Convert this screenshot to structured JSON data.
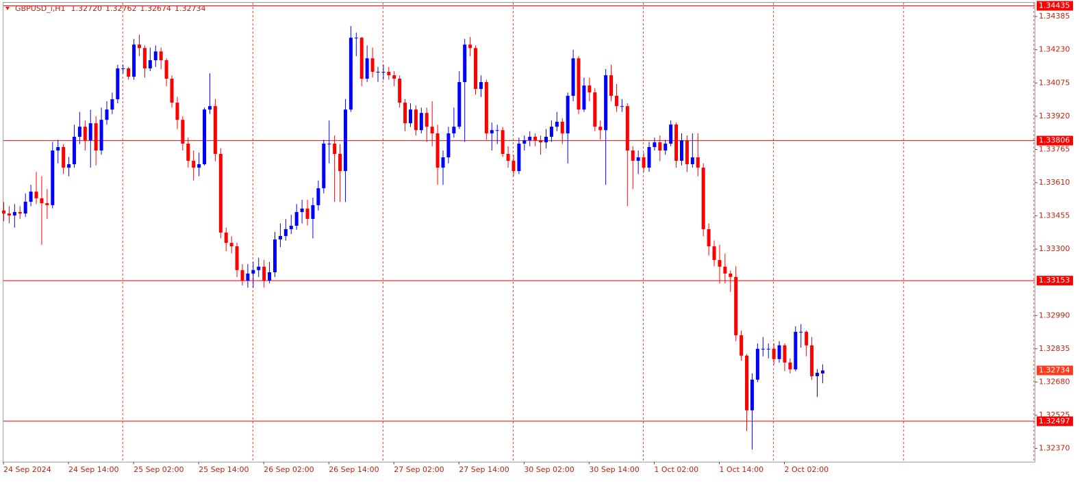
{
  "chart_data": {
    "type": "candlestick",
    "title": "GBPUSD_i,H1",
    "header_values": [
      "1.32720",
      "1.32762",
      "1.32674",
      "1.32734"
    ],
    "up_color": "#0000ff",
    "down_color": "#ff0000",
    "level_color": "#ff0000",
    "last_price_color": "#ff3b1f",
    "ylim": [
      1.32308,
      1.34462
    ],
    "yticks": [
      1.34385,
      {
        "value": 1.3423,
        "label": "1.34230"
      },
      1.34075,
      {
        "value": 1.3392,
        "label": "1.33920"
      },
      1.33765,
      {
        "value": 1.3361,
        "label": "1.33610"
      },
      1.33455,
      {
        "value": 1.333,
        "label": "1.33300"
      },
      {
        "value": 1.3299,
        "label": "1.32990"
      },
      1.32835,
      {
        "value": 1.3268,
        "label": "1.32680"
      },
      1.32525,
      {
        "value": 1.3237,
        "label": "1.32370"
      }
    ],
    "levels": [
      1.34435,
      1.33806,
      1.33153,
      1.32497
    ],
    "last_price": 1.32734,
    "categories": [
      "24 Sep 2024",
      null,
      null,
      null,
      null,
      null,
      null,
      null,
      null,
      null,
      null,
      null,
      "24 Sep 14:00",
      null,
      null,
      null,
      null,
      null,
      null,
      null,
      null,
      null,
      null,
      null,
      "25 Sep 02:00",
      null,
      null,
      null,
      null,
      null,
      null,
      null,
      null,
      null,
      null,
      null,
      "25 Sep 14:00",
      null,
      null,
      null,
      null,
      null,
      null,
      null,
      null,
      null,
      null,
      null,
      "26 Sep 02:00",
      null,
      null,
      null,
      null,
      null,
      null,
      null,
      null,
      null,
      null,
      null,
      "26 Sep 14:00",
      null,
      null,
      null,
      null,
      null,
      null,
      null,
      null,
      null,
      null,
      null,
      "27 Sep 02:00",
      null,
      null,
      null,
      null,
      null,
      null,
      null,
      null,
      null,
      null,
      null,
      "27 Sep 14:00",
      null,
      null,
      null,
      null,
      null,
      null,
      null,
      null,
      null,
      null,
      null,
      "30 Sep 02:00",
      null,
      null,
      null,
      null,
      null,
      null,
      null,
      null,
      null,
      null,
      null,
      "30 Sep 14:00",
      null,
      null,
      null,
      null,
      null,
      null,
      null,
      null,
      null,
      null,
      null,
      "1 Oct 02:00",
      null,
      null,
      null,
      null,
      null,
      null,
      null,
      null,
      null,
      null,
      null,
      "1 Oct 14:00",
      null,
      null,
      null,
      null,
      null,
      null,
      null,
      null,
      null,
      null,
      null,
      "2 Oct 02:00",
      null,
      null,
      null,
      null,
      null,
      null,
      null
    ],
    "candles": [
      [
        1.3348,
        1.3352,
        1.3343,
        1.33466
      ],
      [
        1.33466,
        1.335,
        1.3342,
        1.33457
      ],
      [
        1.33457,
        1.3351,
        1.334,
        1.33473
      ],
      [
        1.33473,
        1.335,
        1.3344,
        1.33466
      ],
      [
        1.33466,
        1.3356,
        1.3345,
        1.33521
      ],
      [
        1.33521,
        1.336,
        1.335,
        1.33568
      ],
      [
        1.33568,
        1.3366,
        1.3351,
        1.33537
      ],
      [
        1.33537,
        1.3364,
        1.3332,
        1.33514
      ],
      [
        1.33514,
        1.3358,
        1.3344,
        1.33505
      ],
      [
        1.33505,
        1.338,
        1.3349,
        1.3376
      ],
      [
        1.3376,
        1.3381,
        1.337,
        1.33776
      ],
      [
        1.33776,
        1.3379,
        1.3365,
        1.3368
      ],
      [
        1.3368,
        1.3373,
        1.3364,
        1.33696
      ],
      [
        1.33696,
        1.3388,
        1.3368,
        1.33824
      ],
      [
        1.33824,
        1.3394,
        1.3379,
        1.33871
      ],
      [
        1.33871,
        1.339,
        1.3376,
        1.33808
      ],
      [
        1.33808,
        1.3395,
        1.3368,
        1.33887
      ],
      [
        1.33887,
        1.3392,
        1.3369,
        1.3376
      ],
      [
        1.3376,
        1.3396,
        1.3374,
        1.33903
      ],
      [
        1.33903,
        1.3399,
        1.3388,
        1.33951
      ],
      [
        1.33951,
        1.3403,
        1.3393,
        1.33999
      ],
      [
        1.33999,
        1.3416,
        1.3398,
        1.34143
      ],
      [
        1.34143,
        1.3416,
        1.3412,
        1.34143
      ],
      [
        1.34143,
        1.3415,
        1.3409,
        1.34104
      ],
      [
        1.34104,
        1.3428,
        1.3409,
        1.34254
      ],
      [
        1.34254,
        1.343,
        1.342,
        1.34238
      ],
      [
        1.34238,
        1.3425,
        1.341,
        1.34143
      ],
      [
        1.34143,
        1.3424,
        1.3413,
        1.34181
      ],
      [
        1.34181,
        1.3425,
        1.3415,
        1.34222
      ],
      [
        1.34222,
        1.3424,
        1.3414,
        1.34181
      ],
      [
        1.34181,
        1.3419,
        1.3406,
        1.34095
      ],
      [
        1.34095,
        1.3411,
        1.3396,
        1.33983
      ],
      [
        1.33983,
        1.3401,
        1.3386,
        1.33903
      ],
      [
        1.33903,
        1.3392,
        1.3376,
        1.33792
      ],
      [
        1.33792,
        1.3382,
        1.3368,
        1.33712
      ],
      [
        1.33712,
        1.3376,
        1.3362,
        1.3368
      ],
      [
        1.3368,
        1.3375,
        1.3364,
        1.33696
      ],
      [
        1.33696,
        1.3396,
        1.3369,
        1.33951
      ],
      [
        1.33951,
        1.3412,
        1.3393,
        1.33967
      ],
      [
        1.33967,
        1.34,
        1.3371,
        1.33744
      ],
      [
        1.33744,
        1.3377,
        1.3335,
        1.33377
      ],
      [
        1.33377,
        1.334,
        1.3329,
        1.33329
      ],
      [
        1.33329,
        1.3336,
        1.3328,
        1.33313
      ],
      [
        1.33313,
        1.3333,
        1.3317,
        1.33202
      ],
      [
        1.33202,
        1.3323,
        1.3313,
        1.33154
      ],
      [
        1.33154,
        1.3323,
        1.3312,
        1.33186
      ],
      [
        1.33186,
        1.3324,
        1.3312,
        1.33202
      ],
      [
        1.33202,
        1.3326,
        1.3317,
        1.33218
      ],
      [
        1.33218,
        1.3325,
        1.3312,
        1.33154
      ],
      [
        1.33154,
        1.3324,
        1.3314,
        1.33192
      ],
      [
        1.33192,
        1.3338,
        1.3317,
        1.33345
      ],
      [
        1.33345,
        1.3342,
        1.3331,
        1.33361
      ],
      [
        1.33361,
        1.3344,
        1.3334,
        1.33393
      ],
      [
        1.33393,
        1.3346,
        1.3337,
        1.33409
      ],
      [
        1.33409,
        1.3351,
        1.3339,
        1.33473
      ],
      [
        1.33473,
        1.3353,
        1.3342,
        1.33489
      ],
      [
        1.33489,
        1.3353,
        1.3341,
        1.33441
      ],
      [
        1.33441,
        1.3354,
        1.3335,
        1.33505
      ],
      [
        1.33505,
        1.3362,
        1.3348,
        1.33584
      ],
      [
        1.33584,
        1.3381,
        1.3356,
        1.33792
      ],
      [
        1.33792,
        1.339,
        1.337,
        1.33792
      ],
      [
        1.33792,
        1.3383,
        1.3352,
        1.33744
      ],
      [
        1.33744,
        1.3379,
        1.3352,
        1.33664
      ],
      [
        1.33664,
        1.34,
        1.3352,
        1.33951
      ],
      [
        1.33951,
        1.3434,
        1.3394,
        1.34286
      ],
      [
        1.34286,
        1.3431,
        1.342,
        1.34286
      ],
      [
        1.34286,
        1.3429,
        1.3406,
        1.34095
      ],
      [
        1.34095,
        1.3425,
        1.3408,
        1.3419
      ],
      [
        1.3419,
        1.3424,
        1.341,
        1.34127
      ],
      [
        1.34127,
        1.3415,
        1.3408,
        1.34127
      ],
      [
        1.34127,
        1.3416,
        1.3409,
        1.34127
      ],
      [
        1.34127,
        1.3415,
        1.3409,
        1.34111
      ],
      [
        1.34111,
        1.3413,
        1.3406,
        1.34095
      ],
      [
        1.34095,
        1.3411,
        1.3396,
        1.33983
      ],
      [
        1.33983,
        1.34,
        1.3385,
        1.33887
      ],
      [
        1.33887,
        1.3398,
        1.3387,
        1.33951
      ],
      [
        1.33951,
        1.3397,
        1.3383,
        1.33855
      ],
      [
        1.33855,
        1.3396,
        1.3384,
        1.33935
      ],
      [
        1.33935,
        1.3396,
        1.338,
        1.33871
      ],
      [
        1.33871,
        1.3399,
        1.3378,
        1.3384
      ],
      [
        1.3384,
        1.3388,
        1.336,
        1.3368
      ],
      [
        1.3368,
        1.3376,
        1.336,
        1.33728
      ],
      [
        1.33728,
        1.3387,
        1.337,
        1.3384
      ],
      [
        1.3384,
        1.3396,
        1.3382,
        1.33871
      ],
      [
        1.33871,
        1.3413,
        1.3386,
        1.34079
      ],
      [
        1.34079,
        1.3428,
        1.338,
        1.34254
      ],
      [
        1.34254,
        1.3429,
        1.342,
        1.34238
      ],
      [
        1.34238,
        1.3425,
        1.3402,
        1.34047
      ],
      [
        1.34047,
        1.3411,
        1.3401,
        1.34079
      ],
      [
        1.34079,
        1.3409,
        1.3381,
        1.3384
      ],
      [
        1.3384,
        1.3389,
        1.3376,
        1.33855
      ],
      [
        1.33855,
        1.3388,
        1.3379,
        1.33855
      ],
      [
        1.33855,
        1.3387,
        1.3373,
        1.33744
      ],
      [
        1.33744,
        1.3378,
        1.3368,
        1.33712
      ],
      [
        1.33712,
        1.3374,
        1.3364,
        1.33664
      ],
      [
        1.33664,
        1.3382,
        1.3365,
        1.33792
      ],
      [
        1.33792,
        1.3383,
        1.3376,
        1.33808
      ],
      [
        1.33808,
        1.3385,
        1.3378,
        1.33824
      ],
      [
        1.33824,
        1.3384,
        1.3378,
        1.33808
      ],
      [
        1.33808,
        1.3383,
        1.3374,
        1.33798
      ],
      [
        1.33798,
        1.3386,
        1.3377,
        1.33824
      ],
      [
        1.33824,
        1.339,
        1.338,
        1.33871
      ],
      [
        1.33871,
        1.3394,
        1.3385,
        1.33894
      ],
      [
        1.33894,
        1.3391,
        1.3379,
        1.3384
      ],
      [
        1.3384,
        1.3403,
        1.337,
        1.34015
      ],
      [
        1.34015,
        1.3423,
        1.3399,
        1.3419
      ],
      [
        1.3419,
        1.342,
        1.3393,
        1.33951
      ],
      [
        1.33951,
        1.341,
        1.3394,
        1.34063
      ],
      [
        1.34063,
        1.341,
        1.3399,
        1.34031
      ],
      [
        1.34031,
        1.3405,
        1.3385,
        1.33871
      ],
      [
        1.33871,
        1.339,
        1.3381,
        1.33855
      ],
      [
        1.33855,
        1.3414,
        1.336,
        1.34111
      ],
      [
        1.34111,
        1.3416,
        1.3399,
        1.34015
      ],
      [
        1.34015,
        1.3407,
        1.3394,
        1.33967
      ],
      [
        1.33967,
        1.34,
        1.3394,
        1.33967
      ],
      [
        1.33967,
        1.3398,
        1.335,
        1.3376
      ],
      [
        1.3376,
        1.3378,
        1.3358,
        1.33712
      ],
      [
        1.33712,
        1.3376,
        1.3365,
        1.33728
      ],
      [
        1.33728,
        1.3375,
        1.3366,
        1.3368
      ],
      [
        1.3368,
        1.338,
        1.3366,
        1.33776
      ],
      [
        1.33776,
        1.3382,
        1.3376,
        1.33798
      ],
      [
        1.33798,
        1.3383,
        1.3371,
        1.3376
      ],
      [
        1.3376,
        1.3381,
        1.3374,
        1.33792
      ],
      [
        1.33792,
        1.339,
        1.3378,
        1.33881
      ],
      [
        1.33881,
        1.3389,
        1.3368,
        1.33712
      ],
      [
        1.33712,
        1.3384,
        1.3369,
        1.33808
      ],
      [
        1.33808,
        1.3383,
        1.3366,
        1.33696
      ],
      [
        1.33696,
        1.3384,
        1.3368,
        1.33728
      ],
      [
        1.33728,
        1.3384,
        1.3364,
        1.3368
      ],
      [
        1.3368,
        1.337,
        1.3336,
        1.33393
      ],
      [
        1.33393,
        1.3342,
        1.3327,
        1.33313
      ],
      [
        1.33313,
        1.3334,
        1.3322,
        1.33249
      ],
      [
        1.33249,
        1.3332,
        1.3314,
        1.33218
      ],
      [
        1.33218,
        1.3328,
        1.3314,
        1.33186
      ],
      [
        1.33186,
        1.332,
        1.331,
        1.3317
      ],
      [
        1.3317,
        1.3322,
        1.3287,
        1.32898
      ],
      [
        1.32898,
        1.3292,
        1.3278,
        1.32803
      ],
      [
        1.32803,
        1.3281,
        1.32451,
        1.32548
      ],
      [
        1.32548,
        1.3272,
        1.32365,
        1.32691
      ],
      [
        1.32691,
        1.3286,
        1.3268,
        1.32835
      ],
      [
        1.32835,
        1.3289,
        1.328,
        1.32835
      ],
      [
        1.32835,
        1.3286,
        1.3279,
        1.32835
      ],
      [
        1.32835,
        1.3286,
        1.3276,
        1.32787
      ],
      [
        1.32787,
        1.3287,
        1.3277,
        1.32851
      ],
      [
        1.32851,
        1.3286,
        1.3273,
        1.32771
      ],
      [
        1.32771,
        1.3279,
        1.3272,
        1.32739
      ],
      [
        1.32739,
        1.3294,
        1.3273,
        1.32914
      ],
      [
        1.32914,
        1.3295,
        1.3284,
        1.32914
      ],
      [
        1.32914,
        1.3292,
        1.328,
        1.32851
      ],
      [
        1.32851,
        1.3289,
        1.3269,
        1.32707
      ],
      [
        1.32707,
        1.3274,
        1.3261,
        1.32723
      ],
      [
        1.3272,
        1.32762,
        1.32674,
        1.32734
      ]
    ]
  }
}
